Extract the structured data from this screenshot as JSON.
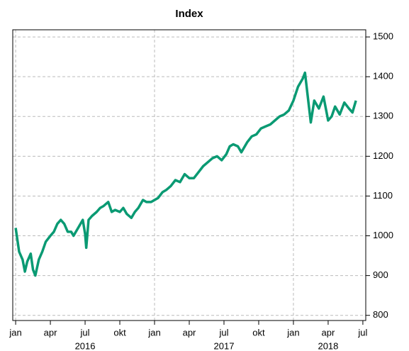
{
  "chart_data": {
    "type": "line",
    "title": "Index",
    "color": "#0a9a73",
    "x": [
      0,
      0.3,
      0.6,
      0.8,
      1.0,
      1.3,
      1.5,
      1.7,
      2.0,
      2.3,
      2.6,
      3.0,
      3.3,
      3.6,
      3.9,
      4.2,
      4.5,
      4.8,
      5.0,
      5.4,
      5.8,
      6.0,
      6.1,
      6.3,
      6.6,
      7.0,
      7.3,
      7.6,
      8.0,
      8.3,
      8.6,
      9.0,
      9.3,
      9.6,
      10.0,
      10.3,
      10.6,
      11.0,
      11.3,
      11.7,
      12.0,
      12.3,
      12.7,
      13.0,
      13.4,
      13.8,
      14.2,
      14.6,
      15.0,
      15.4,
      15.8,
      16.2,
      16.6,
      17.0,
      17.4,
      17.8,
      18.2,
      18.5,
      18.8,
      19.2,
      19.5,
      20.0,
      20.4,
      20.8,
      21.2,
      21.6,
      22.0,
      22.4,
      22.8,
      23.2,
      23.6,
      24.0,
      24.4,
      24.8,
      25.0,
      25.2,
      25.5,
      25.8,
      26.2,
      26.6,
      27.0,
      27.3,
      27.6,
      28.0,
      28.4,
      28.8,
      29.1,
      29.4
    ],
    "values": [
      1020,
      960,
      940,
      910,
      935,
      955,
      915,
      900,
      940,
      960,
      985,
      1000,
      1010,
      1030,
      1040,
      1030,
      1010,
      1010,
      1000,
      1020,
      1040,
      1005,
      970,
      1040,
      1050,
      1060,
      1070,
      1075,
      1085,
      1060,
      1065,
      1060,
      1070,
      1055,
      1045,
      1060,
      1070,
      1090,
      1085,
      1085,
      1090,
      1095,
      1110,
      1115,
      1125,
      1140,
      1135,
      1155,
      1145,
      1145,
      1160,
      1175,
      1185,
      1195,
      1200,
      1190,
      1205,
      1225,
      1230,
      1225,
      1210,
      1235,
      1250,
      1255,
      1270,
      1275,
      1280,
      1290,
      1300,
      1305,
      1315,
      1340,
      1375,
      1395,
      1410,
      1360,
      1285,
      1340,
      1320,
      1350,
      1290,
      1300,
      1325,
      1305,
      1335,
      1320,
      1310,
      1340
    ],
    "xlim": [
      -0.25,
      30.25
    ],
    "xticks": [
      {
        "value": 0,
        "label": "jan"
      },
      {
        "value": 3,
        "label": "apr"
      },
      {
        "value": 6,
        "label": "jul"
      },
      {
        "value": 9,
        "label": "okt"
      },
      {
        "value": 12,
        "label": "jan"
      },
      {
        "value": 15,
        "label": "apr"
      },
      {
        "value": 18,
        "label": "jul"
      },
      {
        "value": 21,
        "label": "okt"
      },
      {
        "value": 24,
        "label": "jan"
      },
      {
        "value": 27,
        "label": "apr"
      },
      {
        "value": 30,
        "label": "jul"
      }
    ],
    "year_labels": [
      {
        "value": 6,
        "label": "2016"
      },
      {
        "value": 18,
        "label": "2017"
      },
      {
        "value": 27,
        "label": "2018"
      }
    ],
    "xgrid": [
      0,
      12,
      24
    ],
    "ylim": [
      787,
      1518
    ],
    "yticks": [
      800,
      900,
      1000,
      1100,
      1200,
      1300,
      1400,
      1500
    ],
    "grid": true
  }
}
